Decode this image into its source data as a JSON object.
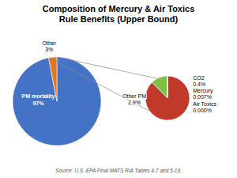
{
  "chart_data": [
    {
      "type": "pie",
      "title": "Composition of Mercury & Air Toxics\nRule Benefits (Upper Bound)",
      "source": "Source: U.S. EPA Final MATS RIA Tables 4-7 and 5-19.",
      "categories": [
        "PM mortality",
        "Other"
      ],
      "values": [
        97,
        3
      ],
      "value_labels": [
        "97%",
        "3%"
      ],
      "colors": [
        "#4472C4",
        "#E07820"
      ],
      "data_labels": true
    },
    {
      "type": "pie",
      "categories": [
        "Other PM",
        "CO2",
        "Mercury",
        "Air Toxics"
      ],
      "values": [
        2.9,
        0.4,
        0.007,
        0.0001
      ],
      "value_labels": [
        "2.9%",
        "0.4%",
        "0.007%",
        "0.000%"
      ],
      "colors": [
        "#C0392B",
        "#7DC242",
        "#C0392B",
        "#C0392B"
      ],
      "data_labels": true
    }
  ]
}
